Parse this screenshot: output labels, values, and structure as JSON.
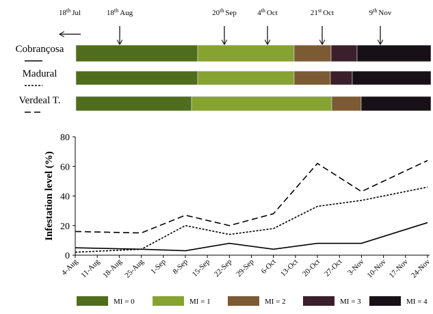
{
  "chart_data": {
    "type": "line",
    "dates": [
      {
        "num": "18",
        "sup": "th",
        "month": "Jul"
      },
      {
        "num": "18",
        "sup": "th",
        "month": "Aug"
      },
      {
        "num": "20",
        "sup": "th",
        "month": "Sep"
      },
      {
        "num": "4",
        "sup": "th",
        "month": "Oct"
      },
      {
        "num": "21",
        "sup": "st",
        "month": "Oct"
      },
      {
        "num": "9",
        "sup": "th",
        "month": "Nov"
      }
    ],
    "ylabel": "Infestation level (%)",
    "categories": [
      "4-Aug",
      "11-Aug",
      "18-Aug",
      "25-Aug",
      "1-Sep",
      "8-Sep",
      "15-Sep",
      "22-Sep",
      "29-Sep",
      "6-Oct",
      "13-Oct",
      "20-Oct",
      "27-Oct",
      "3-Nov",
      "10-Nov",
      "17-Nov",
      "24-Nov"
    ],
    "x": [
      "4-Aug",
      "25-Aug",
      "8-Sep",
      "22-Sep",
      "6-Oct",
      "20-Oct",
      "3-Nov",
      "24-Nov"
    ],
    "series": [
      {
        "name": "Cobrançosa",
        "color": "#000000",
        "dash": "solid",
        "values": [
          5,
          4,
          3,
          8,
          4,
          8,
          8,
          22
        ]
      },
      {
        "name": "Madural",
        "color": "#000000",
        "dash": "dotted",
        "values": [
          2,
          4,
          20,
          14,
          18,
          33,
          37,
          46
        ]
      },
      {
        "name": "Verdeal T.",
        "color": "#000000",
        "dash": "dashed",
        "values": [
          16,
          15,
          27,
          20,
          28,
          62,
          43,
          64
        ]
      }
    ],
    "ylim": [
      0,
      80
    ],
    "yticks": [
      0,
      20,
      40,
      60,
      80
    ],
    "legend": [
      {
        "label": "MI = 0",
        "color": "#4f6d1c"
      },
      {
        "label": "MI = 1",
        "color": "#86a332"
      },
      {
        "label": "MI = 2",
        "color": "#7c5a33"
      },
      {
        "label": "MI = 3",
        "color": "#3b1f2a"
      },
      {
        "label": "MI = 4",
        "color": "#171016"
      }
    ]
  }
}
